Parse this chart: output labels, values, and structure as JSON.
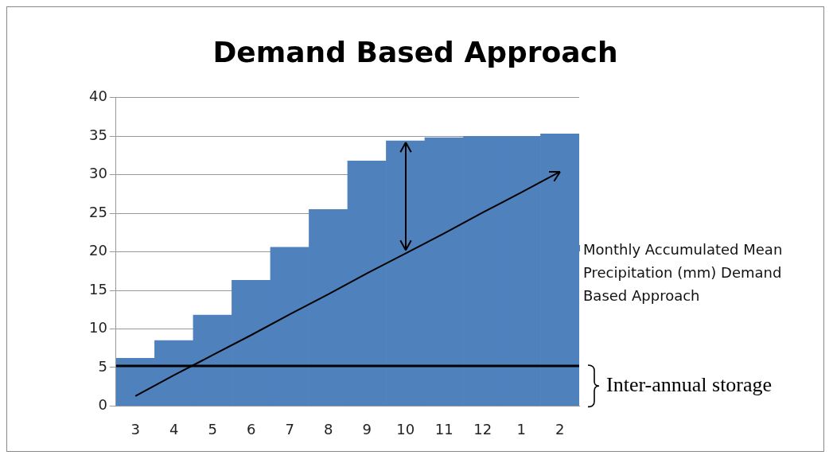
{
  "chart_data": {
    "type": "bar",
    "title": "Demand Based Approach",
    "categories": [
      "3",
      "4",
      "5",
      "6",
      "7",
      "8",
      "9",
      "10",
      "11",
      "12",
      "1",
      "2"
    ],
    "series": [
      {
        "name": "Monthly Accumulated  Mean Precipitation (mm)  Demand Based Approach",
        "color": "#4f81bd",
        "values": [
          6.2,
          8.5,
          11.8,
          16.3,
          20.6,
          25.5,
          31.8,
          34.4,
          34.8,
          35.0,
          35.0,
          35.3
        ]
      },
      {
        "type": "line",
        "color": "#000000",
        "values": [
          1.3,
          4.0,
          6.6,
          9.2,
          11.9,
          14.5,
          17.2,
          19.8,
          22.4,
          25.1,
          27.7,
          30.4
        ]
      }
    ],
    "ylim": [
      0,
      40
    ],
    "yticks": [
      0,
      5,
      10,
      15,
      20,
      25,
      30,
      35,
      40
    ],
    "grid": "y",
    "legend": "right",
    "marker": "none",
    "ref_lines": [
      {
        "axis": "y",
        "value": 5.2,
        "color": "#000000"
      }
    ],
    "annotations": [
      "Inter-annual storage"
    ]
  }
}
